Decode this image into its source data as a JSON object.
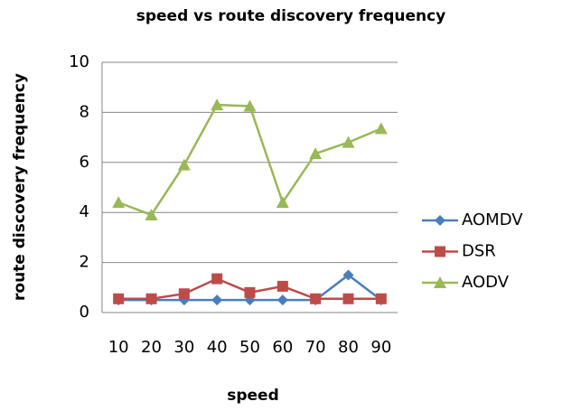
{
  "chart_data": {
    "type": "line",
    "title": "speed vs route discovery frequency",
    "x_label": "speed",
    "y_label": "route discovery frequency",
    "categories": [
      "10",
      "20",
      "30",
      "40",
      "50",
      "60",
      "70",
      "80",
      "90"
    ],
    "series": [
      {
        "name": "AOMDV",
        "color": "#4a7ebb",
        "values": [
          0.5,
          0.5,
          0.5,
          0.5,
          0.5,
          0.5,
          0.5,
          1.5,
          0.5
        ]
      },
      {
        "name": "DSR",
        "color": "#be4b48",
        "values": [
          0.55,
          0.55,
          0.75,
          1.35,
          0.8,
          1.05,
          0.55,
          0.55,
          0.55
        ]
      },
      {
        "name": "AODV",
        "color": "#98b954",
        "values": [
          4.4,
          3.9,
          5.9,
          8.3,
          8.25,
          4.4,
          6.35,
          6.8,
          7.35
        ]
      }
    ],
    "ylim": [
      0,
      10
    ],
    "yticks": [
      0,
      2,
      4,
      6,
      8,
      10
    ],
    "grid": true,
    "legend": "right"
  }
}
